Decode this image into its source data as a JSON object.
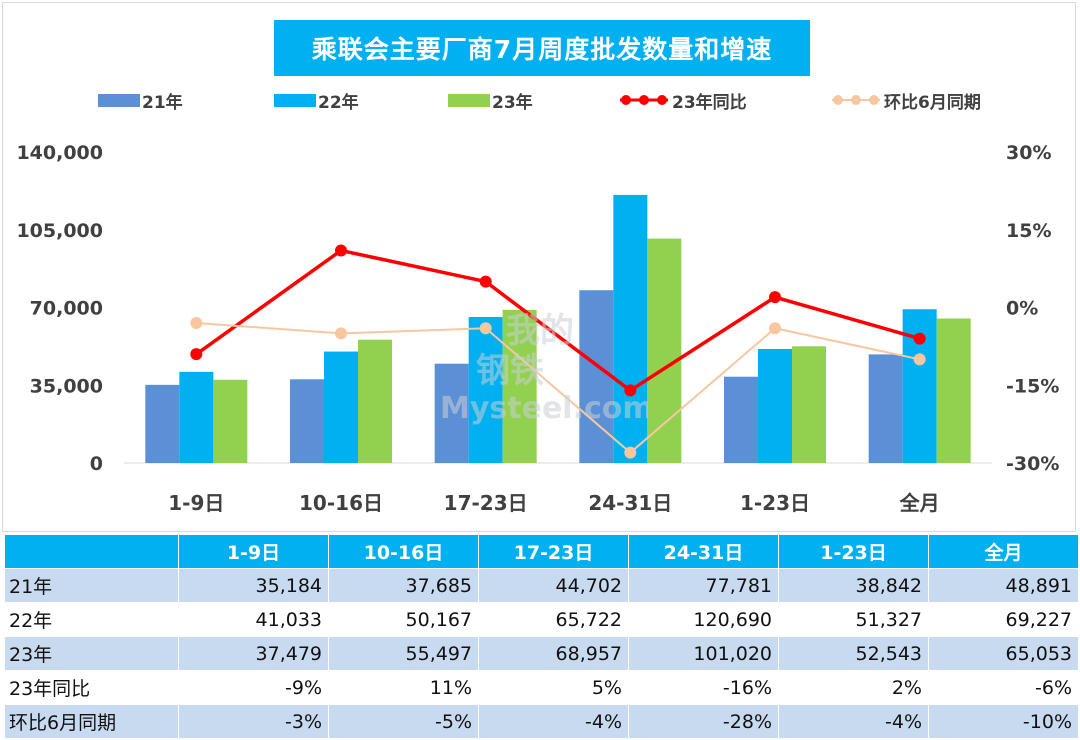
{
  "chart_data": {
    "type": "bar",
    "title": "乘联会主要厂商7月周度批发数量和增速",
    "categories": [
      "1-9日",
      "10-16日",
      "17-23日",
      "24-31日",
      "1-23日",
      "全月"
    ],
    "series": [
      {
        "name": "21年",
        "kind": "bar",
        "axis": "left",
        "color": "#5b8fd6",
        "values": [
          35184,
          37685,
          44702,
          77781,
          38842,
          48891
        ]
      },
      {
        "name": "22年",
        "kind": "bar",
        "axis": "left",
        "color": "#00b0f0",
        "values": [
          41033,
          50167,
          65722,
          120690,
          51327,
          69227
        ]
      },
      {
        "name": "23年",
        "kind": "bar",
        "axis": "left",
        "color": "#92d050",
        "values": [
          37479,
          55497,
          68957,
          101020,
          52543,
          65053
        ]
      },
      {
        "name": "23年同比",
        "kind": "line",
        "axis": "right",
        "color": "#ff0000",
        "values": [
          -9,
          11,
          5,
          -16,
          2,
          -6
        ]
      },
      {
        "name": "环比6月同期",
        "kind": "line",
        "axis": "right",
        "color": "#f8c7a0",
        "values": [
          -3,
          -5,
          -4,
          -28,
          -4,
          -10
        ]
      }
    ],
    "y_left": {
      "min": 0,
      "max": 140000,
      "ticks": [
        0,
        35000,
        70000,
        105000,
        140000
      ],
      "tick_labels": [
        "0",
        "35,000",
        "70,000",
        "105,000",
        "140,000"
      ]
    },
    "y_right": {
      "min": -30,
      "max": 30,
      "unit": "%",
      "ticks": [
        -30,
        -15,
        0,
        15,
        30
      ],
      "tick_labels": [
        "-30%",
        "-15%",
        "0%",
        "15%",
        "30%"
      ]
    },
    "legend_position": "top",
    "grid": false
  },
  "table": {
    "header": [
      "",
      "1-9日",
      "10-16日",
      "17-23日",
      "24-31日",
      "1-23日",
      "全月"
    ],
    "rows": [
      {
        "label": "21年",
        "cells": [
          "35,184",
          "37,685",
          "44,702",
          "77,781",
          "38,842",
          "48,891"
        ]
      },
      {
        "label": "22年",
        "cells": [
          "41,033",
          "50,167",
          "65,722",
          "120,690",
          "51,327",
          "69,227"
        ]
      },
      {
        "label": "23年",
        "cells": [
          "37,479",
          "55,497",
          "68,957",
          "101,020",
          "52,543",
          "65,053"
        ]
      },
      {
        "label": "23年同比",
        "cells": [
          "-9%",
          "11%",
          "5%",
          "-16%",
          "2%",
          "-6%"
        ]
      },
      {
        "label": "环比6月同期",
        "cells": [
          "-3%",
          "-5%",
          "-4%",
          "-28%",
          "-4%",
          "-10%"
        ]
      }
    ]
  },
  "watermark": {
    "line1": "我的",
    "line2": "钢铁",
    "line3": "Mysteel.com"
  }
}
